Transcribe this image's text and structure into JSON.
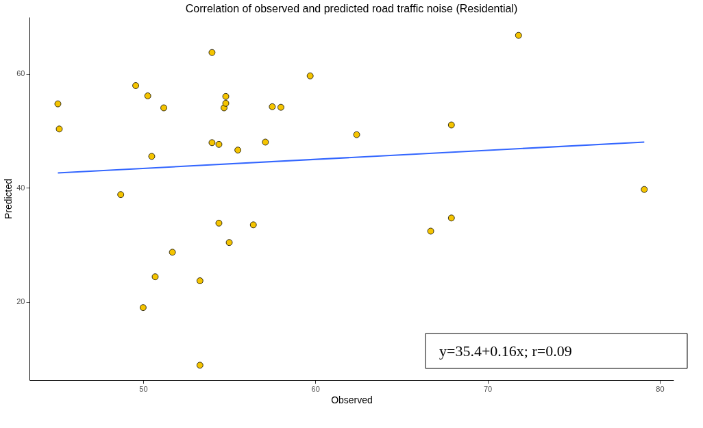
{
  "chart_data": {
    "type": "scatter",
    "title": "Correlation of observed and predicted road traffic noise (Residential)",
    "xlabel": "Observed",
    "ylabel": "Predicted",
    "xlim": [
      43.4,
      80.8
    ],
    "ylim": [
      6.3,
      69.9
    ],
    "xticks": [
      50,
      60,
      70,
      80
    ],
    "yticks": [
      20,
      40,
      60
    ],
    "grid": false,
    "annotations": [
      "y=35.4+0.16x; r=0.09"
    ],
    "series": [
      {
        "marker": "circle",
        "color": "#f5c400",
        "x": [
          45.05,
          45.13,
          48.7,
          49.57,
          50.27,
          50.0,
          50.5,
          50.7,
          51.2,
          51.7,
          53.3,
          53.3,
          54.0,
          54.0,
          54.4,
          54.4,
          54.7,
          54.8,
          54.8,
          55.0,
          55.5,
          56.4,
          57.1,
          57.5,
          58.0,
          59.7,
          62.4,
          66.7,
          67.9,
          67.9,
          71.8,
          79.1
        ],
        "values": [
          54.7,
          50.3,
          38.8,
          57.9,
          56.1,
          19.0,
          45.5,
          24.4,
          54.0,
          28.7,
          23.7,
          8.9,
          63.7,
          47.9,
          47.6,
          33.8,
          54.0,
          54.8,
          56.0,
          30.4,
          46.6,
          33.5,
          48.0,
          54.2,
          54.1,
          59.6,
          49.3,
          32.4,
          34.7,
          51.0,
          66.7,
          39.7
        ]
      },
      {
        "type": "line",
        "marker": "none",
        "color": "#3366ff",
        "x": [
          45.05,
          79.1
        ],
        "values": [
          42.6,
          48.0
        ]
      }
    ]
  }
}
